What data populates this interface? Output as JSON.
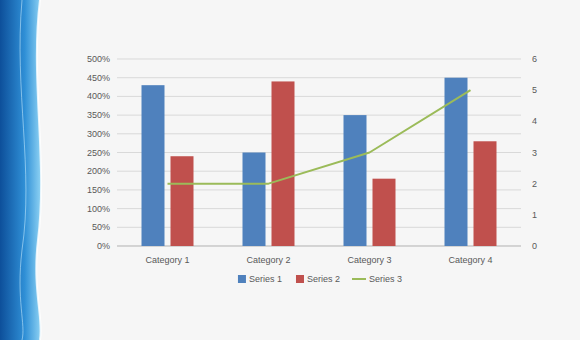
{
  "chart_data": {
    "type": "bar",
    "categories": [
      "Category 1",
      "Category 2",
      "Category 3",
      "Category 4"
    ],
    "series": [
      {
        "name": "Series 1",
        "color": "#4f81bd",
        "values": [
          430,
          250,
          350,
          450
        ]
      },
      {
        "name": "Series 2",
        "color": "#c0504d",
        "values": [
          240,
          440,
          180,
          280
        ]
      },
      {
        "name": "Series 3",
        "color": "#9bbb59",
        "type": "line",
        "axis": "y2",
        "values": [
          2,
          2,
          3,
          5
        ]
      }
    ],
    "ylim": [
      0,
      500
    ],
    "yticks": [
      {
        "value": 0,
        "label": "0%"
      },
      {
        "value": 50,
        "label": "50%"
      },
      {
        "value": 100,
        "label": "100%"
      },
      {
        "value": 150,
        "label": "150%"
      },
      {
        "value": 200,
        "label": "200%"
      },
      {
        "value": 250,
        "label": "250%"
      },
      {
        "value": 300,
        "label": "300%"
      },
      {
        "value": 350,
        "label": "350%"
      },
      {
        "value": 400,
        "label": "400%"
      },
      {
        "value": 450,
        "label": "450%"
      },
      {
        "value": 500,
        "label": "500%"
      }
    ],
    "y2lim": [
      0,
      6
    ],
    "y2ticks": [
      0,
      1,
      2,
      3,
      4,
      5,
      6
    ],
    "grid": true,
    "legend": "bottom"
  }
}
